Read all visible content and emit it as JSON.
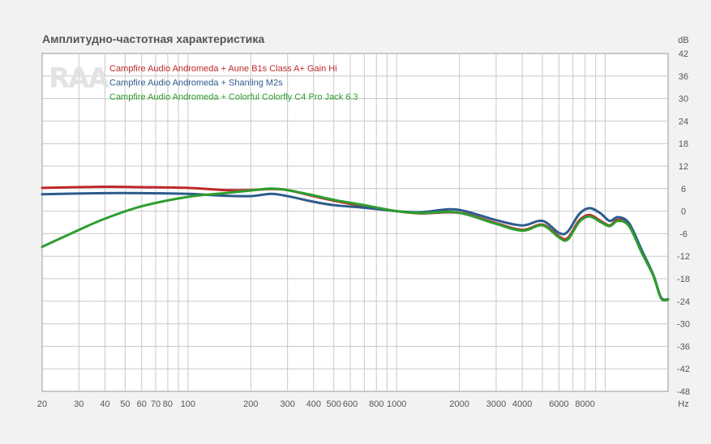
{
  "chart_data": {
    "type": "line",
    "title": "Амплитудно-частотная характеристика",
    "xlabel": "",
    "ylabel": "",
    "x_unit": "Hz",
    "y_unit": "dB",
    "x_scale": "log",
    "xlim": [
      20,
      20000
    ],
    "ylim": [
      -48,
      42
    ],
    "grid": true,
    "legend_position": "top-left",
    "watermark": "RAA",
    "x_ticks": [
      {
        "value": 20,
        "label": "20"
      },
      {
        "value": 30,
        "label": "30"
      },
      {
        "value": 40,
        "label": "40"
      },
      {
        "value": 50,
        "label": "50"
      },
      {
        "value": 60,
        "label": "60"
      },
      {
        "value": 70,
        "label": "70"
      },
      {
        "value": 80,
        "label": "80"
      },
      {
        "value": 100,
        "label": "100"
      },
      {
        "value": 200,
        "label": "200"
      },
      {
        "value": 300,
        "label": "300"
      },
      {
        "value": 400,
        "label": "400"
      },
      {
        "value": 500,
        "label": "500"
      },
      {
        "value": 600,
        "label": "600"
      },
      {
        "value": 800,
        "label": "800"
      },
      {
        "value": 1000,
        "label": "1000"
      },
      {
        "value": 2000,
        "label": "2000"
      },
      {
        "value": 3000,
        "label": "3000"
      },
      {
        "value": 4000,
        "label": "4000"
      },
      {
        "value": 6000,
        "label": "6000"
      },
      {
        "value": 8000,
        "label": "8000"
      }
    ],
    "y_ticks": [
      42,
      36,
      30,
      24,
      18,
      12,
      6,
      0,
      -6,
      -12,
      -18,
      -24,
      -30,
      -36,
      -42,
      -48
    ],
    "series": [
      {
        "name": "Campfire Audio Andromeda  + Aune B1s Class A+ Gain Hi",
        "color": "#c0282a",
        "x": [
          20,
          40,
          60,
          100,
          150,
          200,
          250,
          300,
          400,
          500,
          700,
          1000,
          1300,
          1800,
          2200,
          3000,
          4000,
          5000,
          6000,
          6600,
          7500,
          8400,
          9500,
          10500,
          11500,
          13000,
          15000,
          17000,
          18500,
          20000
        ],
        "y": [
          6.2,
          6.5,
          6.4,
          6.2,
          5.6,
          5.6,
          5.9,
          5.6,
          4.0,
          2.8,
          1.3,
          0,
          -0.6,
          -0.3,
          -0.9,
          -3.2,
          -5.0,
          -3.6,
          -6.7,
          -7.2,
          -2.5,
          -1.0,
          -2.6,
          -3.8,
          -2.3,
          -3.8,
          -11.0,
          -17.0,
          -23.0,
          -23.5
        ]
      },
      {
        "name": "Campfire Audio Andromeda  + Shanling M2s",
        "color": "#2d5b8c",
        "x": [
          20,
          40,
          60,
          100,
          150,
          200,
          250,
          300,
          400,
          500,
          700,
          1000,
          1300,
          1800,
          2200,
          3000,
          4000,
          5000,
          6000,
          6600,
          7500,
          8400,
          9500,
          10500,
          11500,
          13000,
          15000,
          17000,
          18500,
          20000
        ],
        "y": [
          4.5,
          4.8,
          4.8,
          4.6,
          4.1,
          4.0,
          4.6,
          4.0,
          2.5,
          1.6,
          0.9,
          0,
          -0.3,
          0.5,
          -0.2,
          -2.4,
          -3.8,
          -2.6,
          -5.8,
          -5.5,
          -0.8,
          0.8,
          -0.6,
          -2.6,
          -1.6,
          -3.2,
          -10.5,
          -17.0,
          -23.0,
          -23.5
        ]
      },
      {
        "name": "Campfire Audio Andromeda  + Colorful Colorfly C4 Pro Jack 6.3",
        "color": "#2e9e2e",
        "x": [
          20,
          30,
          40,
          60,
          100,
          150,
          200,
          250,
          300,
          400,
          500,
          700,
          1000,
          1300,
          1800,
          2200,
          3000,
          4000,
          5000,
          6000,
          6600,
          7500,
          8400,
          9500,
          10500,
          11500,
          13000,
          15000,
          17000,
          18500,
          20000
        ],
        "y": [
          -9.5,
          -5.0,
          -2.0,
          1.3,
          3.8,
          4.8,
          5.5,
          6.0,
          5.6,
          4.2,
          3.0,
          1.6,
          0,
          -0.5,
          -0.2,
          -1.0,
          -3.4,
          -5.2,
          -3.8,
          -7.0,
          -7.6,
          -2.9,
          -1.4,
          -2.9,
          -4.0,
          -2.6,
          -4.0,
          -11.2,
          -17.2,
          -23.2,
          -23.6
        ]
      }
    ]
  }
}
